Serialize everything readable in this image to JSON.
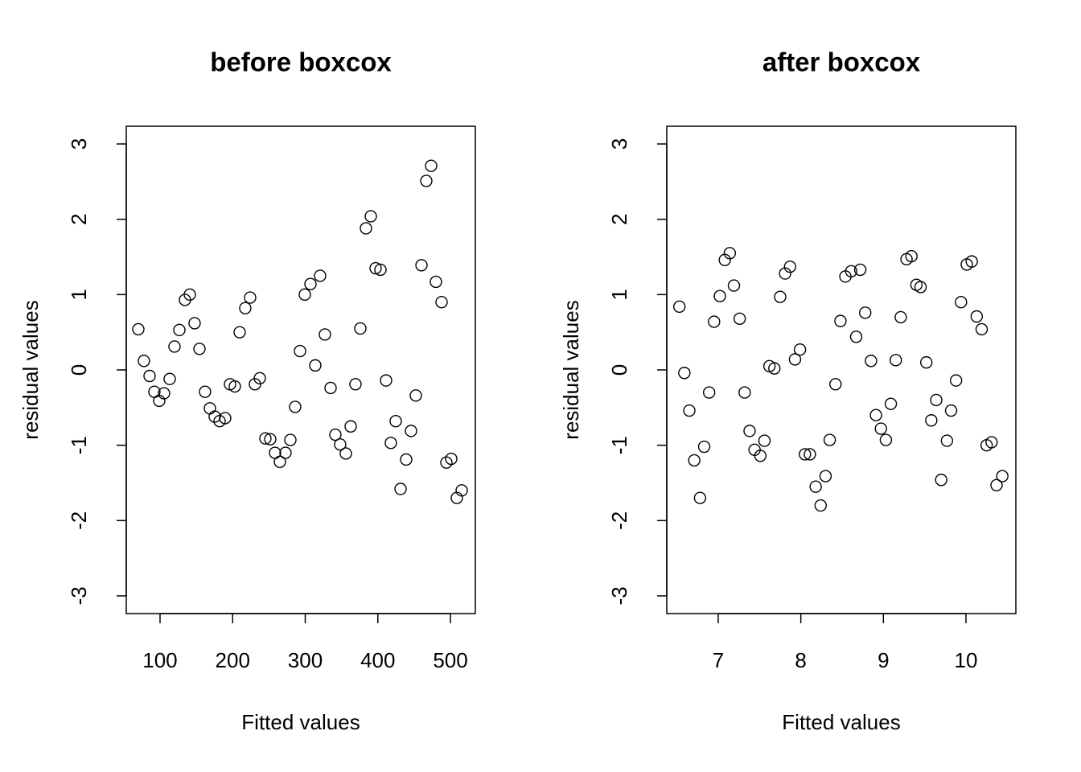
{
  "chart_data": [
    {
      "type": "scatter",
      "title": "before boxcox",
      "xlabel": "Fitted values",
      "ylabel": "residual values",
      "color": "#000000",
      "x": [
        70.1,
        77.8,
        85.6,
        92.2,
        98.9,
        105.5,
        113.3,
        119.9,
        126.6,
        134.3,
        141.0,
        147.6,
        154.3,
        162.0,
        168.7,
        175.3,
        182.0,
        189.7,
        196.4,
        203.0,
        209.7,
        217.4,
        224.1,
        230.7,
        237.4,
        245.1,
        251.8,
        258.4,
        265.1,
        272.8,
        279.5,
        286.1,
        292.8,
        299.4,
        307.2,
        313.8,
        320.5,
        327.1,
        334.9,
        341.5,
        348.1,
        355.9,
        362.6,
        369.2,
        375.9,
        383.6,
        390.3,
        396.9,
        403.6,
        411.3,
        417.9,
        424.6,
        431.3,
        439.0,
        445.7,
        452.3,
        460.1,
        466.7,
        473.4,
        480.0,
        487.8,
        494.4,
        501.1,
        508.8,
        515.5
      ],
      "values": [
        0.54,
        0.12,
        -0.08,
        -0.29,
        -0.41,
        -0.31,
        -0.12,
        0.31,
        0.53,
        0.93,
        1.0,
        0.62,
        0.28,
        -0.29,
        -0.51,
        -0.62,
        -0.68,
        -0.64,
        -0.19,
        -0.22,
        0.5,
        0.82,
        0.96,
        -0.19,
        -0.11,
        -0.91,
        -0.92,
        -1.1,
        -1.22,
        -1.1,
        -0.93,
        -0.49,
        0.25,
        1.0,
        1.14,
        0.06,
        1.25,
        0.47,
        -0.24,
        -0.86,
        -0.99,
        -1.11,
        -0.75,
        -0.19,
        0.55,
        1.88,
        2.04,
        1.35,
        1.33,
        -0.14,
        -0.97,
        -0.68,
        -1.58,
        -1.19,
        -0.81,
        -0.34,
        1.39,
        2.51,
        2.71,
        1.17,
        0.9,
        -1.23,
        -1.18,
        -1.7,
        -1.6
      ],
      "xlim": [
        53.5,
        534.3
      ],
      "xticks": [
        100,
        200,
        300,
        400,
        500
      ],
      "ylim": [
        -3.235,
        3.235
      ],
      "yticks": [
        -3,
        -2,
        -1,
        0,
        1,
        2,
        3
      ]
    },
    {
      "type": "scatter",
      "title": "after boxcox",
      "xlabel": "Fitted values",
      "ylabel": "residual values",
      "color": "#000000",
      "x": [
        6.53,
        6.59,
        6.65,
        6.71,
        6.78,
        6.83,
        6.89,
        6.95,
        7.02,
        7.08,
        7.14,
        7.19,
        7.26,
        7.32,
        7.38,
        7.44,
        7.51,
        7.56,
        7.62,
        7.68,
        7.75,
        7.81,
        7.87,
        7.93,
        7.99,
        8.05,
        8.11,
        8.18,
        8.24,
        8.3,
        8.35,
        8.42,
        8.48,
        8.54,
        8.61,
        8.67,
        8.72,
        8.78,
        8.85,
        8.91,
        8.97,
        9.03,
        9.09,
        9.15,
        9.21,
        9.28,
        9.34,
        9.4,
        9.45,
        9.52,
        9.58,
        9.64,
        9.7,
        9.77,
        9.82,
        9.88,
        9.94,
        10.01,
        10.07,
        10.13,
        10.19,
        10.25,
        10.31,
        10.37,
        10.44
      ],
      "values": [
        0.84,
        -0.04,
        -0.54,
        -1.2,
        -1.7,
        -1.02,
        -0.3,
        0.64,
        0.98,
        1.46,
        1.55,
        1.12,
        0.68,
        -0.3,
        -0.81,
        -1.06,
        -1.14,
        -0.94,
        0.05,
        0.02,
        0.97,
        1.28,
        1.37,
        0.14,
        0.27,
        -1.12,
        -1.12,
        -1.55,
        -1.8,
        -1.41,
        -0.93,
        -0.19,
        0.65,
        1.24,
        1.31,
        0.44,
        1.33,
        0.76,
        0.12,
        -0.6,
        -0.78,
        -0.93,
        -0.45,
        0.13,
        0.7,
        1.47,
        1.51,
        1.13,
        1.1,
        0.1,
        -0.67,
        -0.4,
        -1.46,
        -0.94,
        -0.54,
        -0.14,
        0.9,
        1.4,
        1.44,
        0.71,
        0.54,
        -1.0,
        -0.96,
        -1.53,
        -1.41
      ],
      "xlim": [
        6.377,
        10.604
      ],
      "xticks": [
        7,
        8,
        9,
        10
      ],
      "ylim": [
        -3.235,
        3.235
      ],
      "yticks": [
        -3,
        -2,
        -1,
        0,
        1,
        2,
        3
      ]
    }
  ]
}
